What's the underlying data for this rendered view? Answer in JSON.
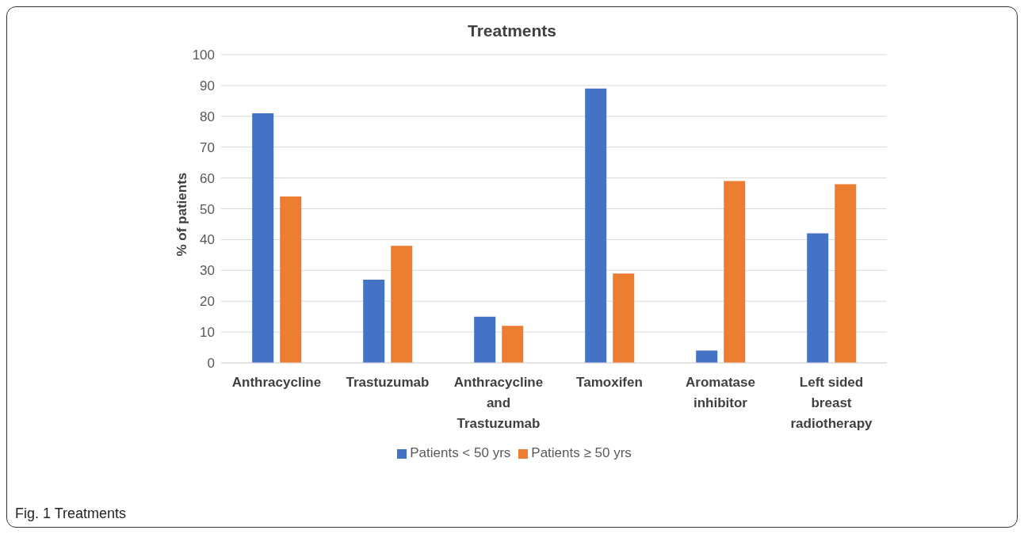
{
  "chart_data": {
    "type": "bar",
    "title": "Treatments",
    "ylabel": "% of patients",
    "categories": [
      "Anthracycline",
      "Trastuzumab",
      "Anthracycline and Trastuzumab",
      "Tamoxifen",
      "Aromatase inhibitor",
      "Left sided breast radiotherapy"
    ],
    "series": [
      {
        "name": "Patients < 50 yrs",
        "color": "#4472c4",
        "values": [
          81,
          27,
          15,
          89,
          4,
          42
        ]
      },
      {
        "name": "Patients ≥ 50 yrs",
        "color": "#ed7d31",
        "values": [
          54,
          38,
          12,
          29,
          59,
          58
        ]
      }
    ],
    "ylim": [
      0,
      100
    ],
    "yticks": [
      0,
      10,
      20,
      30,
      40,
      50,
      60,
      70,
      80,
      90,
      100
    ],
    "grid": "y",
    "legend": "bottom",
    "annotations": [
      "Fig. 1 Treatments"
    ]
  }
}
